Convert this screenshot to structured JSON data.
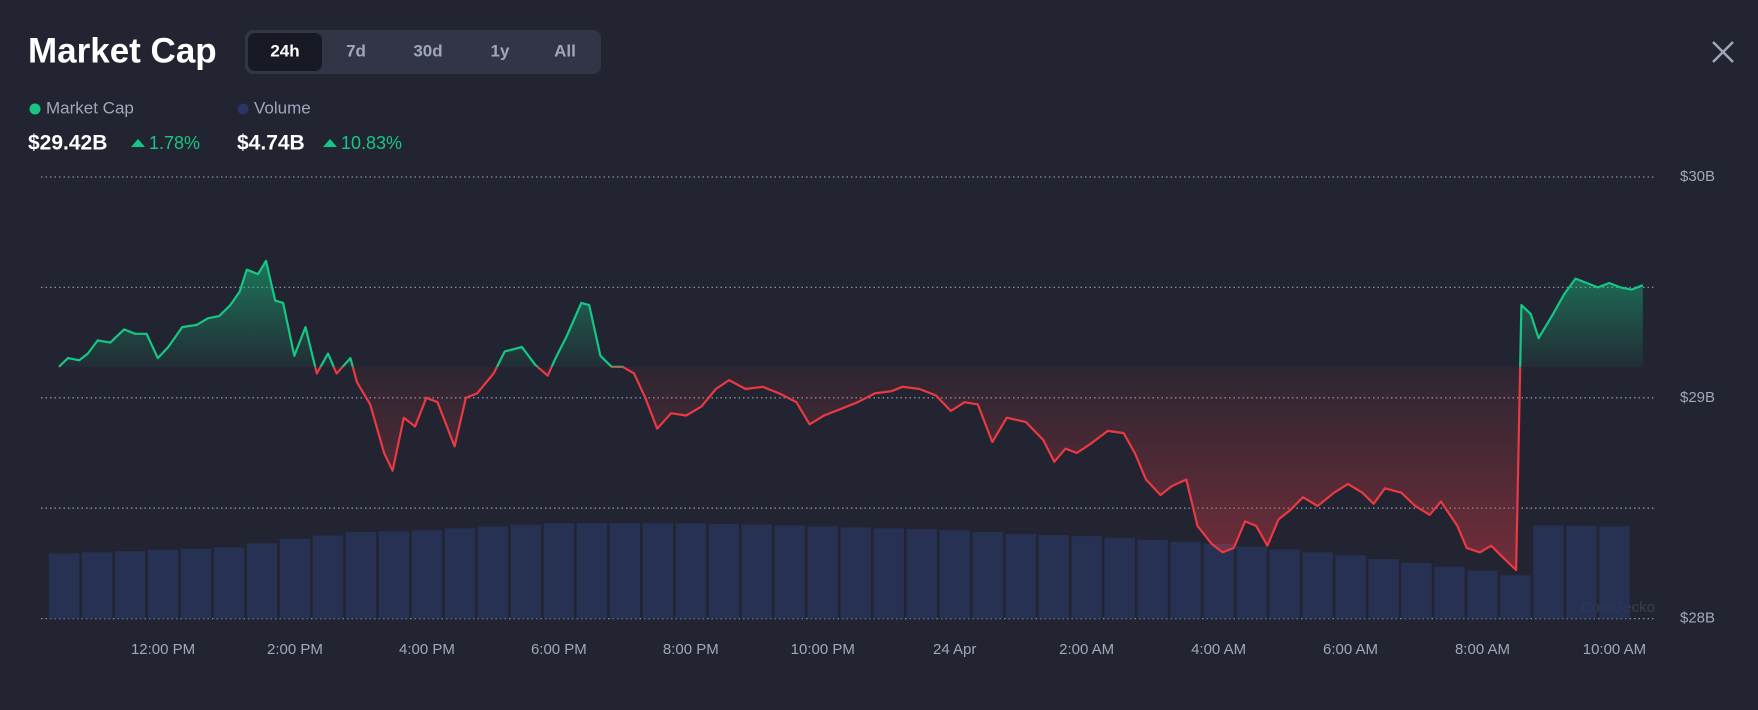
{
  "header": {
    "title": "Market Cap",
    "tabs": [
      "24h",
      "7d",
      "30d",
      "1y",
      "All"
    ],
    "active_tab": 0,
    "stats": [
      {
        "value": "$29.42B",
        "change": "1.78%"
      },
      {
        "value": "$4.74B",
        "change": "10.83%"
      }
    ]
  },
  "chart_data": {
    "type": "line",
    "watermark": "CoinGecko",
    "x": [
      10.42,
      10.56,
      10.73,
      10.86,
      11.01,
      11.2,
      11.41,
      11.58,
      11.75,
      11.92,
      12.08,
      12.29,
      12.51,
      12.68,
      12.85,
      13.02,
      13.16,
      13.27,
      13.44,
      13.56,
      13.7,
      13.82,
      13.99,
      14.16,
      14.33,
      14.5,
      14.63,
      14.84,
      14.94,
      15.14,
      15.35,
      15.48,
      15.65,
      15.82,
      15.99,
      16.16,
      16.42,
      16.59,
      16.76,
      17.01,
      17.18,
      17.44,
      17.64,
      17.83,
      17.95,
      18.12,
      18.34,
      18.46,
      18.63,
      18.8,
      18.97,
      19.14,
      19.31,
      19.49,
      19.7,
      19.93,
      20.16,
      20.38,
      20.58,
      20.83,
      21.09,
      21.34,
      21.6,
      21.8,
      22.02,
      22.28,
      22.53,
      22.79,
      23.04,
      23.21,
      23.47,
      23.72,
      23.94,
      24.15,
      24.35,
      24.57,
      24.79,
      25.08,
      25.34,
      25.51,
      25.68,
      25.85,
      26.05,
      26.32,
      26.56,
      26.73,
      26.9,
      27.12,
      27.29,
      27.51,
      27.68,
      27.89,
      28.06,
      28.23,
      28.4,
      28.57,
      28.74,
      28.91,
      29.08,
      29.28,
      29.5,
      29.75,
      29.96,
      30.18,
      30.35,
      30.52,
      30.77,
      30.98,
      31.2,
      31.37,
      31.62,
      31.76,
      31.96,
      32.13,
      32.3,
      32.51,
      32.59,
      32.73,
      32.85,
      33.07,
      33.24,
      33.41,
      33.58,
      33.75,
      33.92,
      34.09,
      34.26,
      34.43
    ],
    "series": [
      {
        "name": "Market Cap",
        "color": "#16c784",
        "down_color": "#ea3943",
        "values": [
          29.14,
          29.18,
          29.17,
          29.2,
          29.26,
          29.25,
          29.31,
          29.29,
          29.29,
          29.18,
          29.23,
          29.32,
          29.33,
          29.36,
          29.37,
          29.42,
          29.48,
          29.58,
          29.56,
          29.62,
          29.44,
          29.43,
          29.19,
          29.32,
          29.11,
          29.2,
          29.11,
          29.18,
          29.07,
          28.97,
          28.75,
          28.67,
          28.91,
          28.87,
          29.0,
          28.98,
          28.78,
          29.0,
          29.02,
          29.11,
          29.21,
          29.23,
          29.15,
          29.1,
          29.18,
          29.28,
          29.43,
          29.42,
          29.19,
          29.14,
          29.14,
          29.11,
          29.0,
          28.86,
          28.93,
          28.92,
          28.96,
          29.04,
          29.08,
          29.04,
          29.05,
          29.02,
          28.98,
          28.88,
          28.92,
          28.95,
          28.98,
          29.02,
          29.03,
          29.05,
          29.04,
          29.01,
          28.94,
          28.98,
          28.97,
          28.8,
          28.91,
          28.89,
          28.81,
          28.71,
          28.77,
          28.75,
          28.79,
          28.85,
          28.84,
          28.75,
          28.63,
          28.56,
          28.6,
          28.63,
          28.42,
          28.34,
          28.3,
          28.32,
          28.44,
          28.42,
          28.33,
          28.45,
          28.49,
          28.55,
          28.51,
          28.57,
          28.61,
          28.57,
          28.52,
          28.59,
          28.57,
          28.51,
          28.47,
          28.53,
          28.42,
          28.32,
          28.3,
          28.33,
          28.28,
          28.22,
          29.42,
          29.38,
          29.27,
          29.38,
          29.47,
          29.54,
          29.52,
          29.5,
          29.52,
          29.5,
          29.49,
          29.51
        ]
      },
      {
        "name": "Volume",
        "color": "#2a3560",
        "axis": "y2",
        "x": [
          10.5,
          11,
          11.5,
          12,
          12.5,
          13,
          13.5,
          14,
          14.5,
          15,
          15.5,
          16,
          16.5,
          17,
          17.5,
          18,
          18.5,
          19,
          19.5,
          20,
          20.5,
          21,
          21.5,
          22,
          22.5,
          23,
          23.5,
          24,
          24.5,
          25,
          25.5,
          26,
          26.5,
          27,
          27.5,
          28,
          28.5,
          29,
          29.5,
          30,
          30.5,
          31,
          31.5,
          32,
          32.5,
          33,
          33.5,
          34
        ],
        "values": [
          3.39,
          3.45,
          3.51,
          3.57,
          3.63,
          3.7,
          3.92,
          4.15,
          4.33,
          4.5,
          4.55,
          4.6,
          4.7,
          4.8,
          4.89,
          4.97,
          4.97,
          4.97,
          4.96,
          4.95,
          4.92,
          4.9,
          4.85,
          4.8,
          4.75,
          4.7,
          4.65,
          4.6,
          4.5,
          4.4,
          4.35,
          4.3,
          4.2,
          4.1,
          4.0,
          3.9,
          3.75,
          3.6,
          3.45,
          3.3,
          3.1,
          2.9,
          2.7,
          2.5,
          2.25,
          4.85,
          4.82,
          4.8
        ]
      }
    ],
    "xlim": [
      10.15,
      34.63
    ],
    "xticks": [
      {
        "value": 12,
        "label": "12:00 PM"
      },
      {
        "value": 14,
        "label": "2:00 PM"
      },
      {
        "value": 16,
        "label": "4:00 PM"
      },
      {
        "value": 18,
        "label": "6:00 PM"
      },
      {
        "value": 20,
        "label": "8:00 PM"
      },
      {
        "value": 22,
        "label": "10:00 PM"
      },
      {
        "value": 24,
        "label": "24 Apr"
      },
      {
        "value": 26,
        "label": "2:00 AM"
      },
      {
        "value": 28,
        "label": "4:00 AM"
      },
      {
        "value": 30,
        "label": "6:00 AM"
      },
      {
        "value": 32,
        "label": "8:00 AM"
      },
      {
        "value": 34,
        "label": "10:00 AM"
      }
    ],
    "ylim": [
      28,
      30
    ],
    "yticks": [
      {
        "value": 28,
        "label": "$28B"
      },
      {
        "value": 29,
        "label": "$29B"
      },
      {
        "value": 30,
        "label": "$30B"
      }
    ],
    "ygrid": [
      28,
      28.5,
      29,
      29.5,
      30
    ],
    "y2lim": [
      0,
      23
    ],
    "grid": true
  }
}
